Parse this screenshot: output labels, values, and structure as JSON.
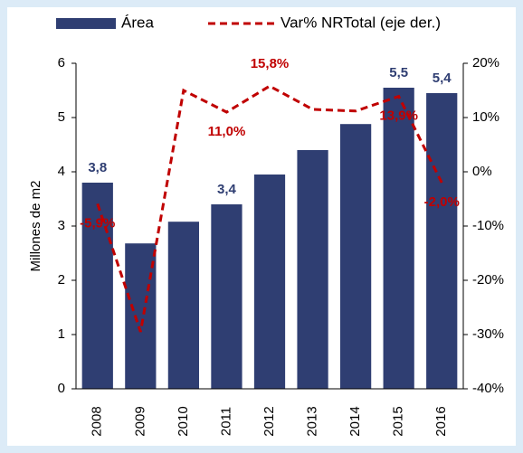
{
  "chart_data": {
    "type": "bar",
    "categories": [
      "2008",
      "2009",
      "2010",
      "2011",
      "2012",
      "2013",
      "2014",
      "2015",
      "2016"
    ],
    "series": [
      {
        "name": "Área",
        "type": "bar",
        "color": "#2f3e72",
        "values": [
          3.8,
          2.68,
          3.08,
          3.4,
          3.95,
          4.4,
          4.88,
          5.55,
          5.45
        ],
        "value_labels": [
          "3,8",
          null,
          null,
          "3,4",
          null,
          null,
          null,
          "5,5",
          "5,4"
        ]
      },
      {
        "name": "Var% NRTotal (eje der.)",
        "type": "line",
        "axis": "y2",
        "color": "#c00000",
        "values": [
          -5.9,
          -29.5,
          15,
          11.0,
          15.8,
          11.5,
          11.2,
          13.9,
          -2.0
        ],
        "value_labels": [
          "-5,9%",
          null,
          null,
          "11,0%",
          "15,8%",
          null,
          null,
          "13,9%",
          "-2,0%"
        ]
      }
    ],
    "ylabel": "Millones de m2",
    "ylim": [
      0,
      6
    ],
    "yticks": [
      0,
      1,
      2,
      3,
      4,
      5,
      6
    ],
    "y2lim": [
      -40,
      20
    ],
    "y2ticks": [
      {
        "value": 20,
        "label": "20%"
      },
      {
        "value": 10,
        "label": "10%"
      },
      {
        "value": 0,
        "label": "0%"
      },
      {
        "value": -10,
        "label": "-10%"
      },
      {
        "value": -20,
        "label": "-20%"
      },
      {
        "value": -30,
        "label": "-30%"
      },
      {
        "value": -40,
        "label": "-40%"
      }
    ],
    "legend": "top"
  }
}
